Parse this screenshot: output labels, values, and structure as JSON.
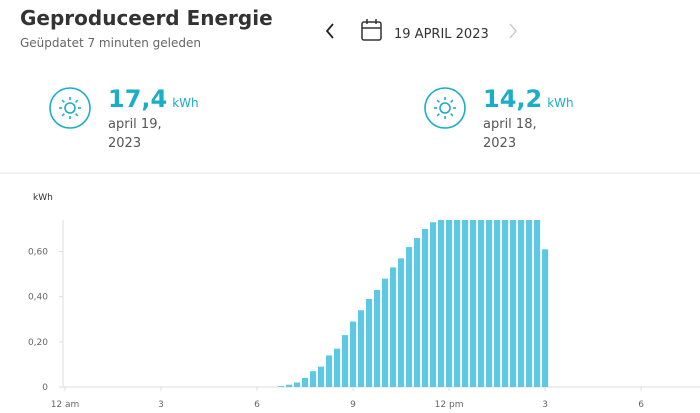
{
  "header": {
    "title": "Geproduceerd Energie",
    "subtitle": "Geüpdatet 7 minuten geleden",
    "date": "19 APRIL 2023"
  },
  "cards": [
    {
      "value": "17,4",
      "unit": "kWh",
      "date": "april 19, 2023"
    },
    {
      "value": "14,2",
      "unit": "kWh",
      "date": "april 18, 2023"
    }
  ],
  "chart_data": {
    "type": "bar",
    "y_label": "kWh",
    "color": "#5cc8e4",
    "x": [
      6.75,
      7,
      7.25,
      7.5,
      7.75,
      8,
      8.25,
      8.5,
      8.75,
      9,
      9.25,
      9.5,
      9.75,
      10,
      10.25,
      10.5,
      10.75,
      11,
      11.25,
      11.5,
      11.75,
      12,
      12.25,
      12.5,
      12.75,
      13,
      13.25,
      13.5,
      13.75,
      14,
      14.25,
      14.5,
      14.75,
      15
    ],
    "values": [
      0.004,
      0.01,
      0.02,
      0.04,
      0.07,
      0.09,
      0.14,
      0.17,
      0.23,
      0.29,
      0.34,
      0.39,
      0.43,
      0.48,
      0.53,
      0.57,
      0.62,
      0.66,
      0.7,
      0.73,
      0.74,
      0.74,
      0.74,
      0.74,
      0.74,
      0.74,
      0.74,
      0.74,
      0.74,
      0.74,
      0.74,
      0.74,
      0.74,
      0.61
    ],
    "xlim": [
      0,
      19.84
    ],
    "xticks": [
      {
        "value": 0,
        "label": "12 am"
      },
      3,
      6,
      9,
      {
        "value": 12,
        "label": "12 pm"
      },
      {
        "value": 15,
        "label": "3"
      },
      {
        "value": 18,
        "label": "6"
      }
    ],
    "ylim": [
      0,
      0.74
    ],
    "yticks": [
      0,
      {
        "value": 0.2,
        "label": "0,20"
      },
      {
        "value": 0.4,
        "label": "0,40"
      },
      {
        "value": 0.6,
        "label": "0,60"
      }
    ]
  }
}
